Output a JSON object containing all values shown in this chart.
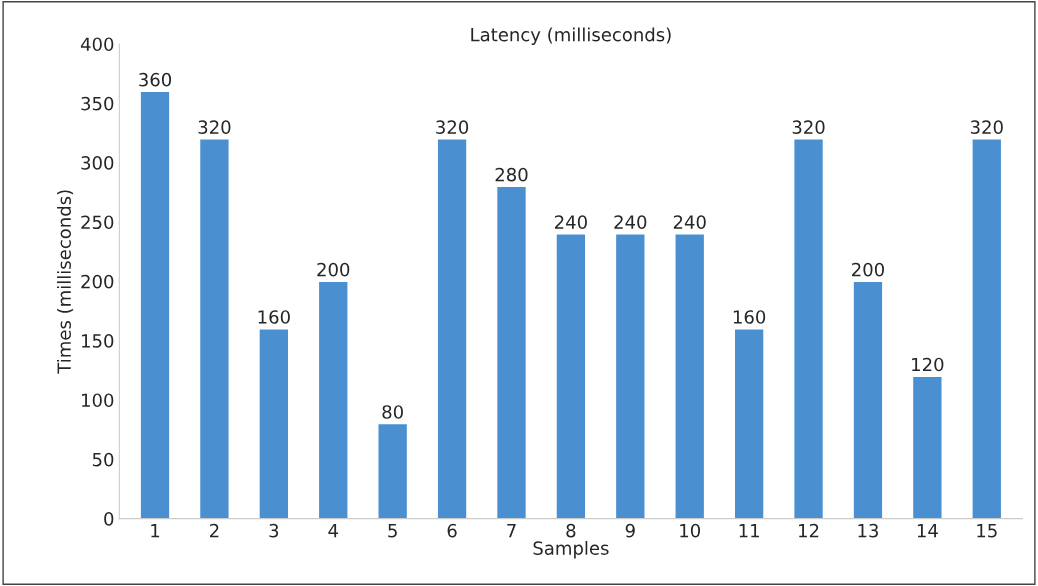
{
  "chart_data": {
    "type": "bar",
    "title": "Latency (milliseconds)",
    "xlabel": "Samples",
    "ylabel": "Times (milliseconds)",
    "categories": [
      "1",
      "2",
      "3",
      "4",
      "5",
      "6",
      "7",
      "8",
      "9",
      "10",
      "11",
      "12",
      "13",
      "14",
      "15"
    ],
    "values": [
      360,
      320,
      160,
      200,
      80,
      320,
      280,
      240,
      240,
      240,
      160,
      320,
      200,
      120,
      320
    ],
    "color": "#4a90d0",
    "ylim": [
      0,
      400
    ],
    "yticks": [
      0,
      50,
      100,
      150,
      200,
      250,
      300,
      350,
      400
    ],
    "data_labels": true,
    "grid": false,
    "legend": false
  }
}
